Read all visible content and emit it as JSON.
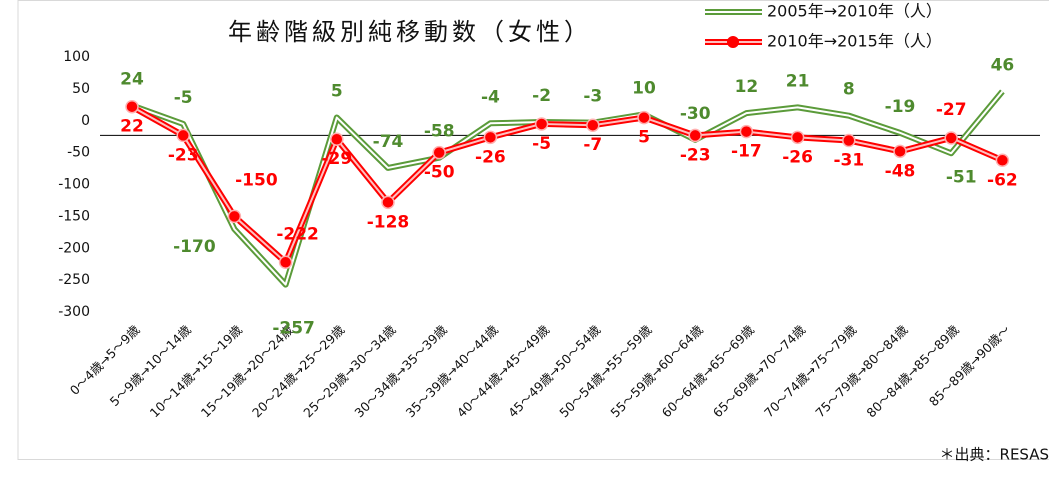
{
  "chart_data": {
    "type": "line",
    "title": "年齢階級別純移動数（女性）",
    "categories": [
      "0～4歳→5～9歳",
      "5～9歳→10～14歳",
      "10～14歳→15～19歳",
      "15～19歳→20～24歳",
      "20～24歳→25～29歳",
      "25～29歳→30～34歳",
      "30～34歳→35～39歳",
      "35～39歳→40～44歳",
      "40～44歳→45～49歳",
      "45～49歳→50～54歳",
      "50～54歳→55～59歳",
      "55～59歳→60～64歳",
      "60～64歳→65～69歳",
      "65～69歳→70～74歳",
      "70～74歳→75～79歳",
      "75～79歳→80～84歳",
      "80～84歳→85～89歳",
      "85～89歳→90歳～"
    ],
    "series": [
      {
        "name": "2005年→2010年（人）",
        "color": "#5b9b3a",
        "values": [
          24,
          -5,
          -170,
          -257,
          5,
          -74,
          -58,
          -4,
          -2,
          -3,
          10,
          -30,
          12,
          21,
          8,
          -19,
          -51,
          46
        ]
      },
      {
        "name": "2010年→2015年（人）",
        "color": "#ff0000",
        "values": [
          22,
          -23,
          -150,
          -222,
          -29,
          -128,
          -50,
          -26,
          -5,
          -7,
          5,
          -23,
          -17,
          -26,
          -31,
          -48,
          -27,
          -62
        ]
      }
    ],
    "ylim": [
      -300,
      100
    ],
    "yticks": [
      -300,
      -250,
      -200,
      -150,
      -100,
      -50,
      0,
      50,
      100
    ],
    "reference_line": -23,
    "source": "＊出典：RESAS"
  }
}
